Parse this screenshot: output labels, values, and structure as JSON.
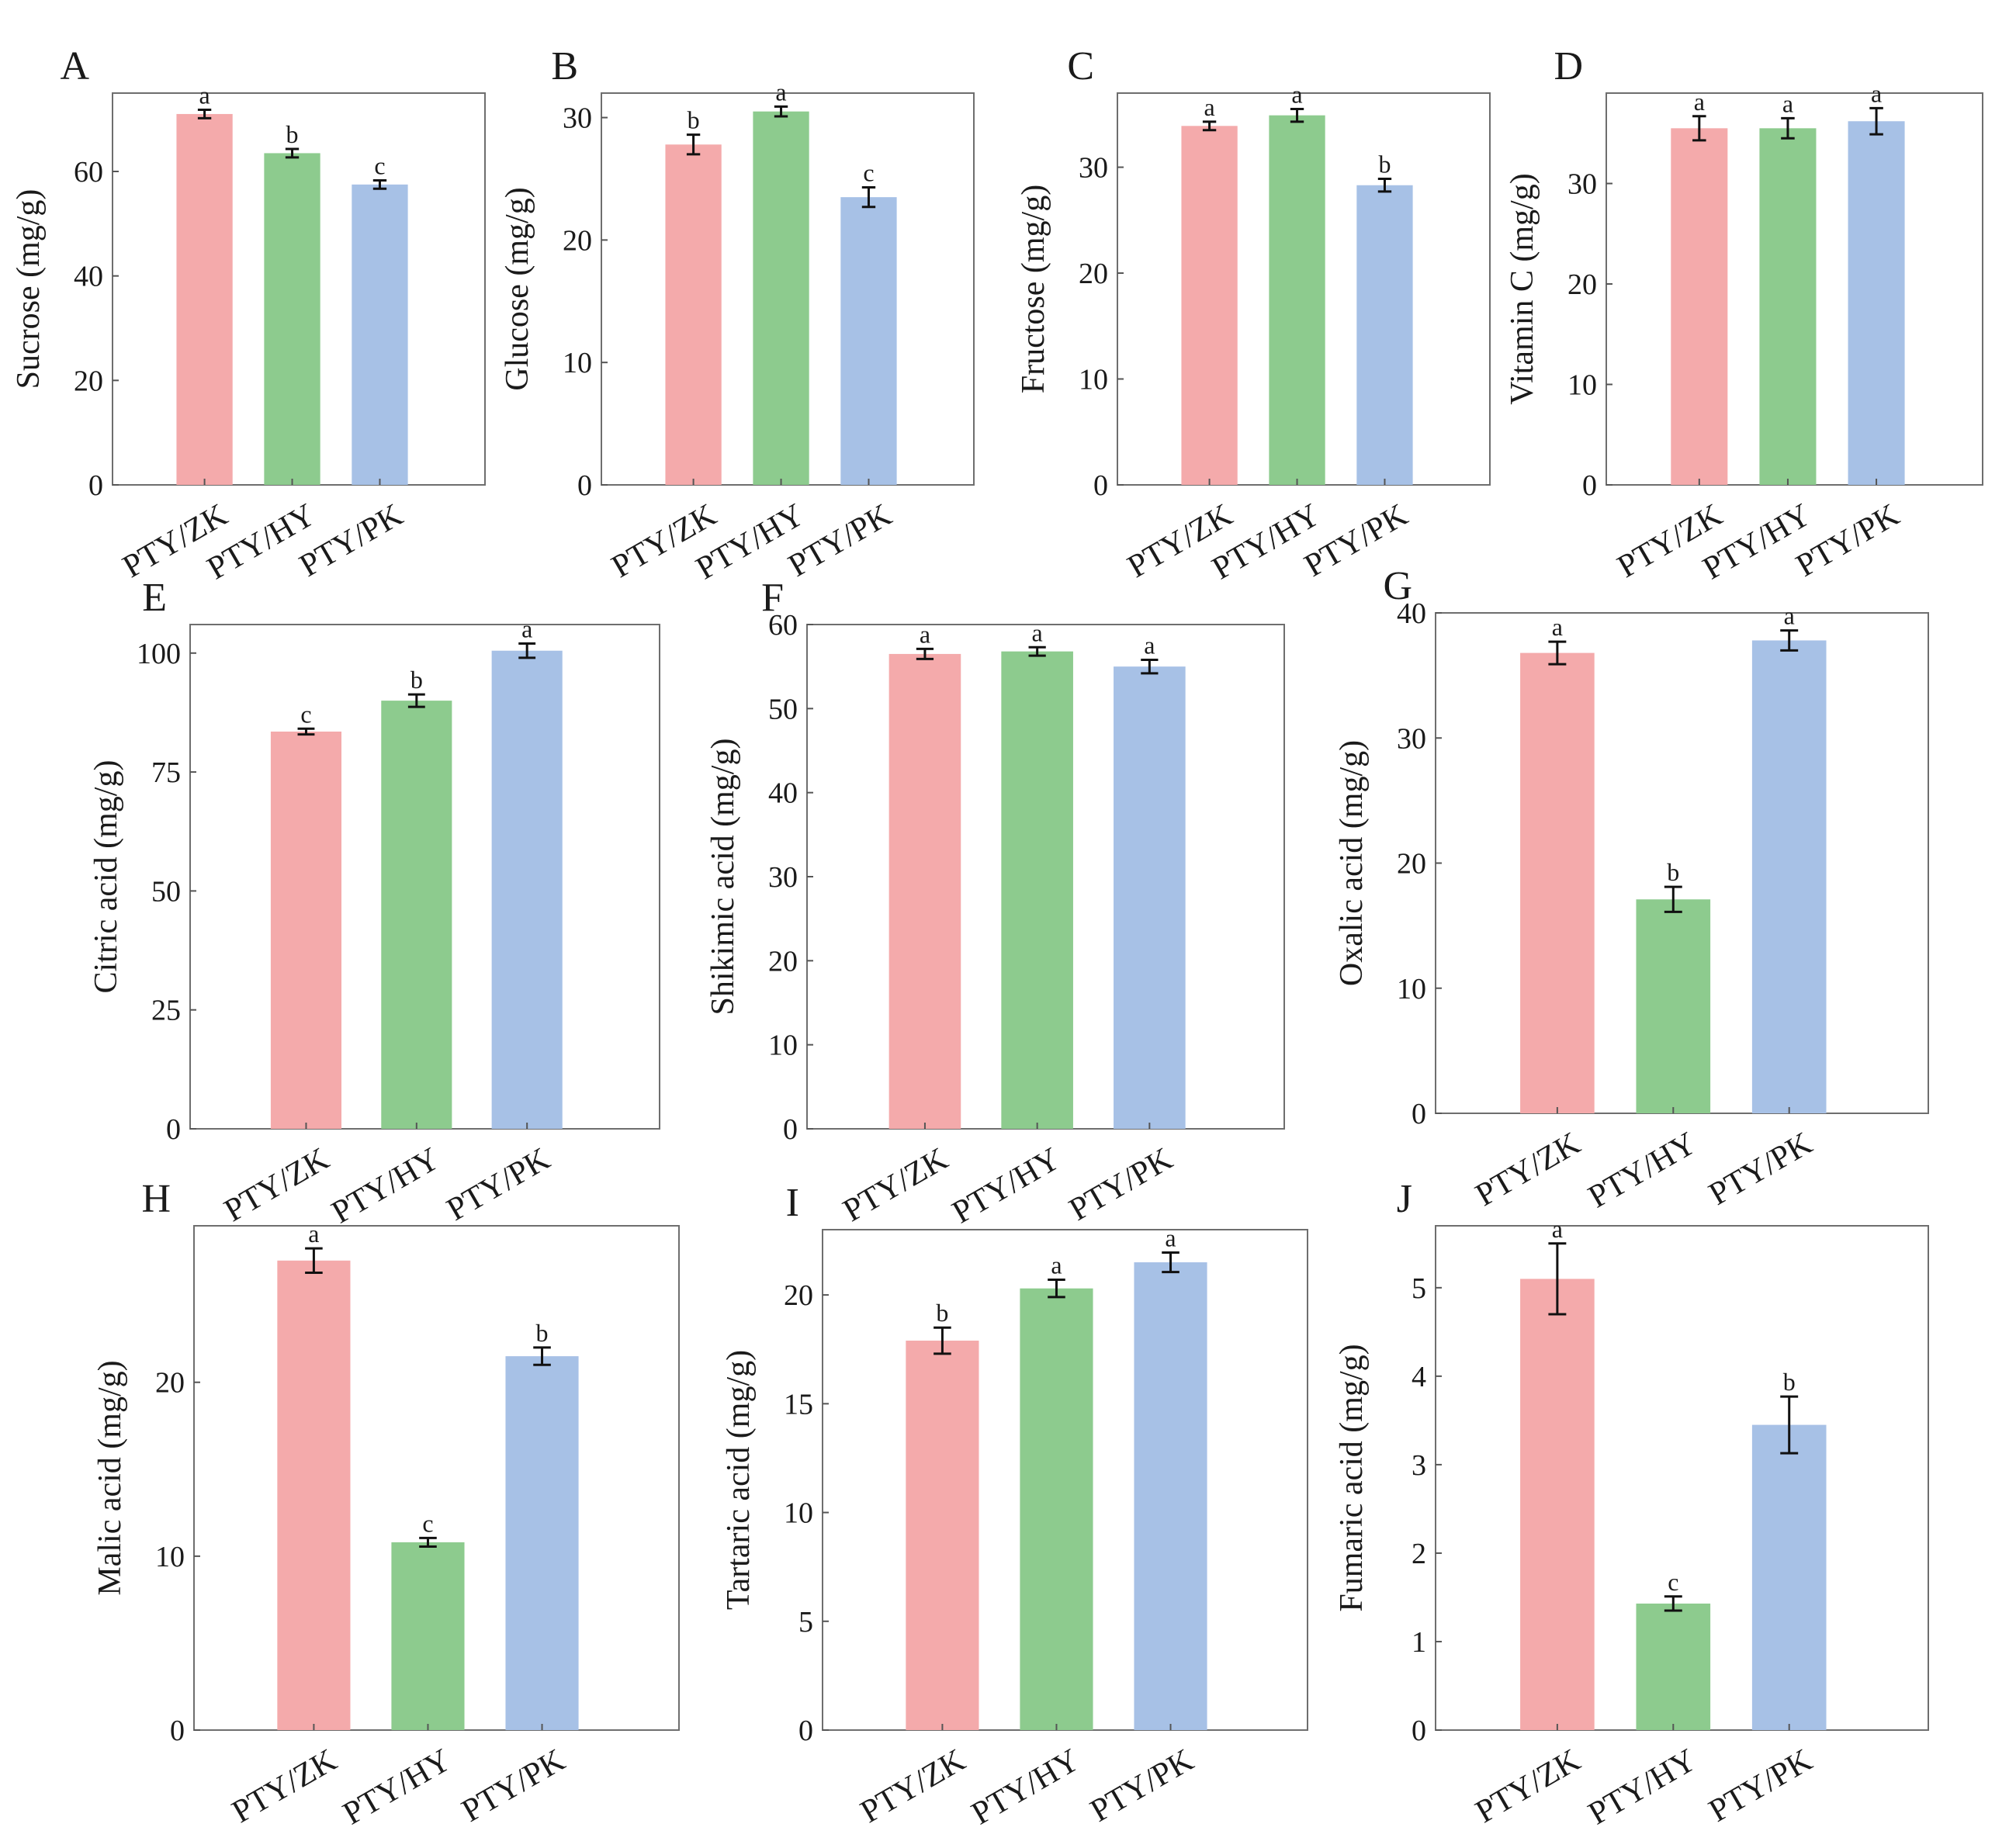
{
  "colors": {
    "PTY/ZK": "#f4aaab",
    "PTY/HY": "#8dcb8e",
    "PTY/PK": "#a7c1e6",
    "frame": "#6e6e6e",
    "text": "#1a1a1a"
  },
  "chart_data": [
    {
      "panel": "A",
      "type": "bar",
      "ylabel": "Sucrose (mg/g)",
      "ylim": [
        0,
        75
      ],
      "yticks": [
        0,
        20,
        40,
        60
      ],
      "categories": [
        "PTY/ZK",
        "PTY/HY",
        "PTY/PK"
      ],
      "values": [
        71,
        63.5,
        57.5
      ],
      "errors": [
        0.8,
        0.8,
        0.8
      ],
      "letters": [
        "a",
        "b",
        "c"
      ]
    },
    {
      "panel": "B",
      "type": "bar",
      "ylabel": "Glucose (mg/g)",
      "ylim": [
        0,
        32
      ],
      "yticks": [
        0,
        10,
        20,
        30
      ],
      "categories": [
        "PTY/ZK",
        "PTY/HY",
        "PTY/PK"
      ],
      "values": [
        27.8,
        30.5,
        23.5
      ],
      "errors": [
        0.8,
        0.4,
        0.8
      ],
      "letters": [
        "b",
        "a",
        "c"
      ]
    },
    {
      "panel": "C",
      "type": "bar",
      "ylabel": "Fructose (mg/g)",
      "ylim": [
        0,
        37
      ],
      "yticks": [
        0,
        10,
        20,
        30
      ],
      "categories": [
        "PTY/ZK",
        "PTY/HY",
        "PTY/PK"
      ],
      "values": [
        33.9,
        34.9,
        28.3
      ],
      "errors": [
        0.4,
        0.6,
        0.6
      ],
      "letters": [
        "a",
        "a",
        "b"
      ]
    },
    {
      "panel": "D",
      "type": "bar",
      "ylabel": "Vitamin C (mg/g)",
      "ylim": [
        0,
        39
      ],
      "yticks": [
        0,
        10,
        20,
        30
      ],
      "categories": [
        "PTY/ZK",
        "PTY/HY",
        "PTY/PK"
      ],
      "values": [
        35.5,
        35.5,
        36.2
      ],
      "errors": [
        1.2,
        1.0,
        1.3
      ],
      "letters": [
        "a",
        "a",
        "a"
      ]
    },
    {
      "panel": "E",
      "type": "bar",
      "ylabel": "Citric acid (mg/g)",
      "ylim": [
        0,
        106
      ],
      "yticks": [
        0,
        25,
        50,
        75,
        100
      ],
      "categories": [
        "PTY/ZK",
        "PTY/HY",
        "PTY/PK"
      ],
      "values": [
        83.5,
        90,
        100.5
      ],
      "errors": [
        0.6,
        1.3,
        1.5
      ],
      "letters": [
        "c",
        "b",
        "a"
      ]
    },
    {
      "panel": "F",
      "type": "bar",
      "ylabel": "Shikimic acid (mg/g)",
      "ylim": [
        0,
        60
      ],
      "yticks": [
        0,
        10,
        20,
        30,
        40,
        50,
        60
      ],
      "categories": [
        "PTY/ZK",
        "PTY/HY",
        "PTY/PK"
      ],
      "values": [
        56.5,
        56.8,
        55.0
      ],
      "errors": [
        0.6,
        0.5,
        0.8
      ],
      "letters": [
        "a",
        "a",
        "a"
      ]
    },
    {
      "panel": "G",
      "type": "bar",
      "ylabel": "Oxalic acid (mg/g)",
      "ylim": [
        0,
        40
      ],
      "yticks": [
        0,
        10,
        20,
        30,
        40
      ],
      "categories": [
        "PTY/ZK",
        "PTY/HY",
        "PTY/PK"
      ],
      "values": [
        36.8,
        17.1,
        37.8
      ],
      "errors": [
        0.9,
        1.0,
        0.8
      ],
      "letters": [
        "a",
        "b",
        "a"
      ]
    },
    {
      "panel": "H",
      "type": "bar",
      "ylabel": "Malic acid (mg/g)",
      "ylim": [
        0,
        29
      ],
      "yticks": [
        0,
        10,
        20
      ],
      "categories": [
        "PTY/ZK",
        "PTY/HY",
        "PTY/PK"
      ],
      "values": [
        27.0,
        10.8,
        21.5
      ],
      "errors": [
        0.7,
        0.25,
        0.5
      ],
      "letters": [
        "a",
        "c",
        "b"
      ]
    },
    {
      "panel": "I",
      "type": "bar",
      "ylabel": "Tartaric acid (mg/g)",
      "ylim": [
        0,
        23
      ],
      "yticks": [
        0,
        5,
        10,
        15,
        20
      ],
      "categories": [
        "PTY/ZK",
        "PTY/HY",
        "PTY/PK"
      ],
      "values": [
        17.9,
        20.3,
        21.5
      ],
      "errors": [
        0.6,
        0.4,
        0.45
      ],
      "letters": [
        "b",
        "a",
        "a"
      ]
    },
    {
      "panel": "J",
      "type": "bar",
      "ylabel": "Fumaric acid (mg/g)",
      "ylim": [
        0,
        5.7
      ],
      "yticks": [
        0,
        1,
        2,
        3,
        4,
        5
      ],
      "categories": [
        "PTY/ZK",
        "PTY/HY",
        "PTY/PK"
      ],
      "values": [
        5.1,
        1.43,
        3.45
      ],
      "errors": [
        0.4,
        0.08,
        0.32
      ],
      "letters": [
        "a",
        "c",
        "b"
      ]
    }
  ]
}
